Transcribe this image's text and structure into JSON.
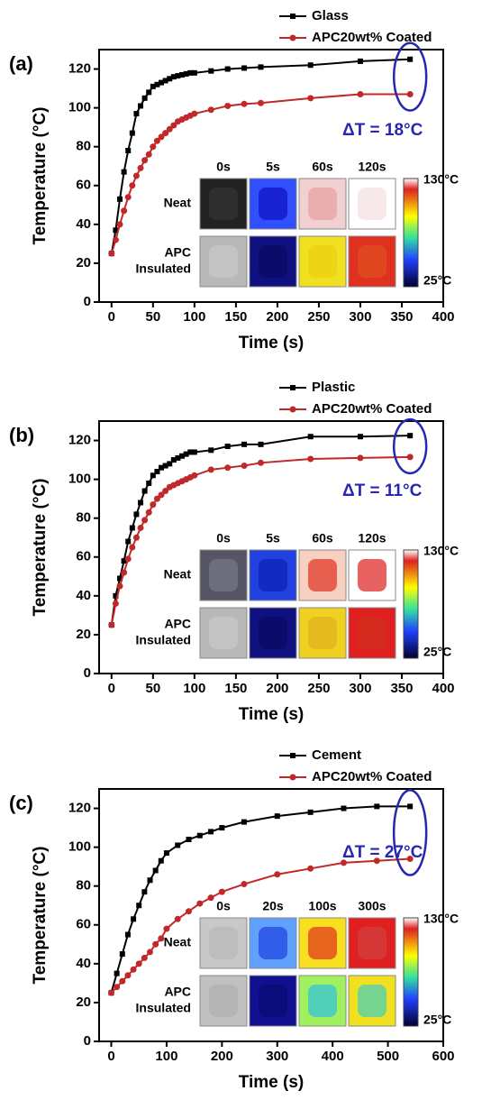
{
  "chart_data": [
    {
      "type": "line",
      "panel_label": "(a)",
      "xlabel": "Time (s)",
      "ylabel": "Temperature (°C)",
      "x": [
        0,
        5,
        10,
        15,
        20,
        25,
        30,
        35,
        40,
        45,
        50,
        55,
        60,
        65,
        70,
        75,
        80,
        85,
        90,
        95,
        100,
        120,
        140,
        160,
        180,
        240,
        300,
        360
      ],
      "series": [
        {
          "name": "Glass",
          "color": "#000000",
          "marker": "square",
          "values": [
            25,
            37,
            53,
            67,
            78,
            87,
            97,
            101,
            105,
            108,
            111,
            112,
            113,
            114,
            115,
            116,
            116.5,
            117,
            117.5,
            118,
            118,
            119,
            120,
            120.5,
            121,
            122,
            124,
            125
          ]
        },
        {
          "name": "APC20wt% Coated",
          "color": "#c0282a",
          "marker": "circle",
          "values": [
            25,
            32,
            40,
            47,
            54,
            60,
            65,
            69,
            73,
            76,
            80,
            83,
            85,
            87,
            89,
            91,
            93,
            94,
            95,
            96,
            97,
            99,
            101,
            102,
            102.5,
            105,
            107,
            107
          ]
        }
      ],
      "xlim": [
        -15,
        400
      ],
      "xticks": [
        0,
        50,
        100,
        150,
        200,
        250,
        300,
        350,
        400
      ],
      "ylim": [
        0,
        130
      ],
      "yticks": [
        0,
        20,
        40,
        60,
        80,
        100,
        120
      ],
      "annotation": "ΔT = 18°C",
      "inset": {
        "time_labels": [
          "0s",
          "5s",
          "60s",
          "120s"
        ],
        "row_labels": [
          [
            "Neat"
          ],
          [
            "APC",
            "Insulated"
          ]
        ],
        "colorbar_labels": [
          "130°C",
          "25°C"
        ]
      }
    },
    {
      "type": "line",
      "panel_label": "(b)",
      "xlabel": "Time (s)",
      "ylabel": "Temperature (°C)",
      "x": [
        0,
        5,
        10,
        15,
        20,
        25,
        30,
        35,
        40,
        45,
        50,
        55,
        60,
        65,
        70,
        75,
        80,
        85,
        90,
        95,
        100,
        120,
        140,
        160,
        180,
        240,
        300,
        360
      ],
      "series": [
        {
          "name": "Plastic",
          "color": "#000000",
          "marker": "square",
          "values": [
            25,
            40,
            49,
            58,
            68,
            75,
            82,
            88,
            94,
            98,
            102,
            104,
            106,
            107,
            108,
            110,
            111,
            112,
            113,
            114,
            114,
            115,
            117,
            118,
            118,
            122,
            122,
            122.5
          ]
        },
        {
          "name": "APC20wt% Coated",
          "color": "#c0282a",
          "marker": "circle",
          "values": [
            25,
            36,
            45,
            52,
            59,
            65,
            70,
            75,
            79,
            83,
            87,
            90,
            92,
            94,
            96,
            97,
            98,
            99,
            100,
            101,
            102,
            105,
            106,
            107,
            108.5,
            110.5,
            111,
            111.5
          ]
        }
      ],
      "xlim": [
        -15,
        400
      ],
      "xticks": [
        0,
        50,
        100,
        150,
        200,
        250,
        300,
        350,
        400
      ],
      "ylim": [
        0,
        130
      ],
      "yticks": [
        0,
        20,
        40,
        60,
        80,
        100,
        120
      ],
      "annotation": "ΔT = 11°C",
      "inset": {
        "time_labels": [
          "0s",
          "5s",
          "60s",
          "120s"
        ],
        "row_labels": [
          [
            "Neat"
          ],
          [
            "APC",
            "Insulated"
          ]
        ],
        "colorbar_labels": [
          "130°C",
          "25°C"
        ]
      }
    },
    {
      "type": "line",
      "panel_label": "(c)",
      "xlabel": "Time (s)",
      "ylabel": "Temperature (°C)",
      "x": [
        0,
        10,
        20,
        30,
        40,
        50,
        60,
        70,
        80,
        90,
        100,
        120,
        140,
        160,
        180,
        200,
        240,
        300,
        360,
        420,
        480,
        540
      ],
      "series": [
        {
          "name": "Cement",
          "color": "#000000",
          "marker": "square",
          "values": [
            25,
            35,
            45,
            55,
            63,
            70,
            77,
            83,
            88,
            93,
            97,
            101,
            104,
            106,
            108,
            110,
            113,
            116,
            118,
            120,
            121,
            121
          ]
        },
        {
          "name": "APC20wt% Coated",
          "color": "#c0282a",
          "marker": "circle",
          "values": [
            25,
            28,
            31,
            34,
            37,
            40,
            43,
            46,
            50,
            53,
            58,
            63,
            67,
            71,
            74,
            77,
            81,
            86,
            89,
            92,
            93,
            94
          ]
        }
      ],
      "xlim": [
        -22,
        600
      ],
      "xticks": [
        0,
        100,
        200,
        300,
        400,
        500,
        600
      ],
      "ylim": [
        0,
        130
      ],
      "yticks": [
        0,
        20,
        40,
        60,
        80,
        100,
        120
      ],
      "annotation": "ΔT = 27°C",
      "inset": {
        "time_labels": [
          "0s",
          "20s",
          "100s",
          "300s"
        ],
        "row_labels": [
          [
            "Neat"
          ],
          [
            "APC",
            "Insulated"
          ]
        ],
        "colorbar_labels": [
          "130°C",
          "25°C"
        ]
      }
    }
  ]
}
